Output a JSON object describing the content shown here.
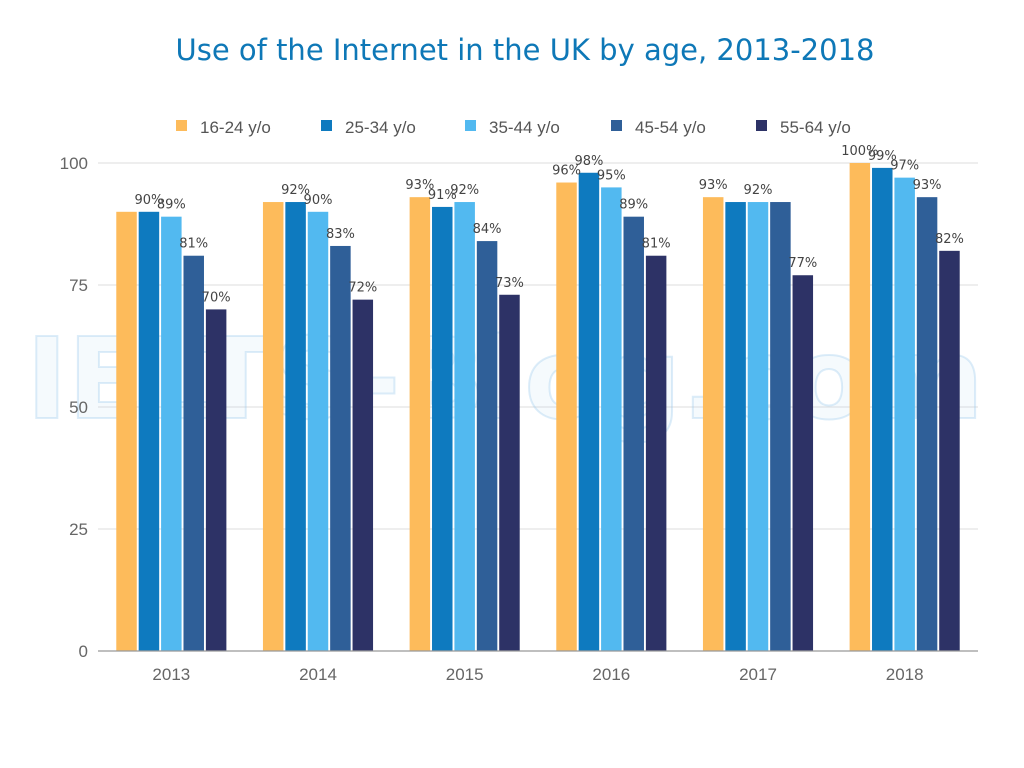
{
  "watermark": "IELTS-Blog.com",
  "chart_data": {
    "type": "bar",
    "title": "Use of the Internet in the UK by age, 2013-2018",
    "xlabel": "",
    "ylabel": "",
    "categories": [
      "2013",
      "2014",
      "2015",
      "2016",
      "2017",
      "2018"
    ],
    "ylim": [
      0,
      100
    ],
    "yticks": [
      0,
      25,
      50,
      75,
      100
    ],
    "grid": true,
    "legend_position": "top",
    "value_suffix": "%",
    "series": [
      {
        "name": "16-24 y/o",
        "color": "#fdbb5b",
        "values": [
          90,
          92,
          93,
          96,
          93,
          100
        ],
        "labels": [
          "",
          "",
          "93%",
          "96%",
          "93%",
          "100%"
        ]
      },
      {
        "name": "25-34 y/o",
        "color": "#0e7abf",
        "values": [
          90,
          92,
          91,
          98,
          92,
          99
        ],
        "labels": [
          "90%",
          "92%",
          "91%",
          "98%",
          "",
          "99%"
        ]
      },
      {
        "name": "35-44 y/o",
        "color": "#52b9f0",
        "values": [
          89,
          90,
          92,
          95,
          92,
          97
        ],
        "labels": [
          "89%",
          "90%",
          "92%",
          "95%",
          "92%",
          "97%"
        ]
      },
      {
        "name": "45-54 y/o",
        "color": "#2f5f98",
        "values": [
          81,
          83,
          84,
          89,
          92,
          93
        ],
        "labels": [
          "81%",
          "83%",
          "84%",
          "89%",
          "",
          "93%"
        ]
      },
      {
        "name": "55-64 y/o",
        "color": "#2d3266",
        "values": [
          70,
          72,
          73,
          81,
          77,
          82
        ],
        "labels": [
          "70%",
          "72%",
          "73%",
          "81%",
          "77%",
          "82%"
        ]
      }
    ]
  }
}
